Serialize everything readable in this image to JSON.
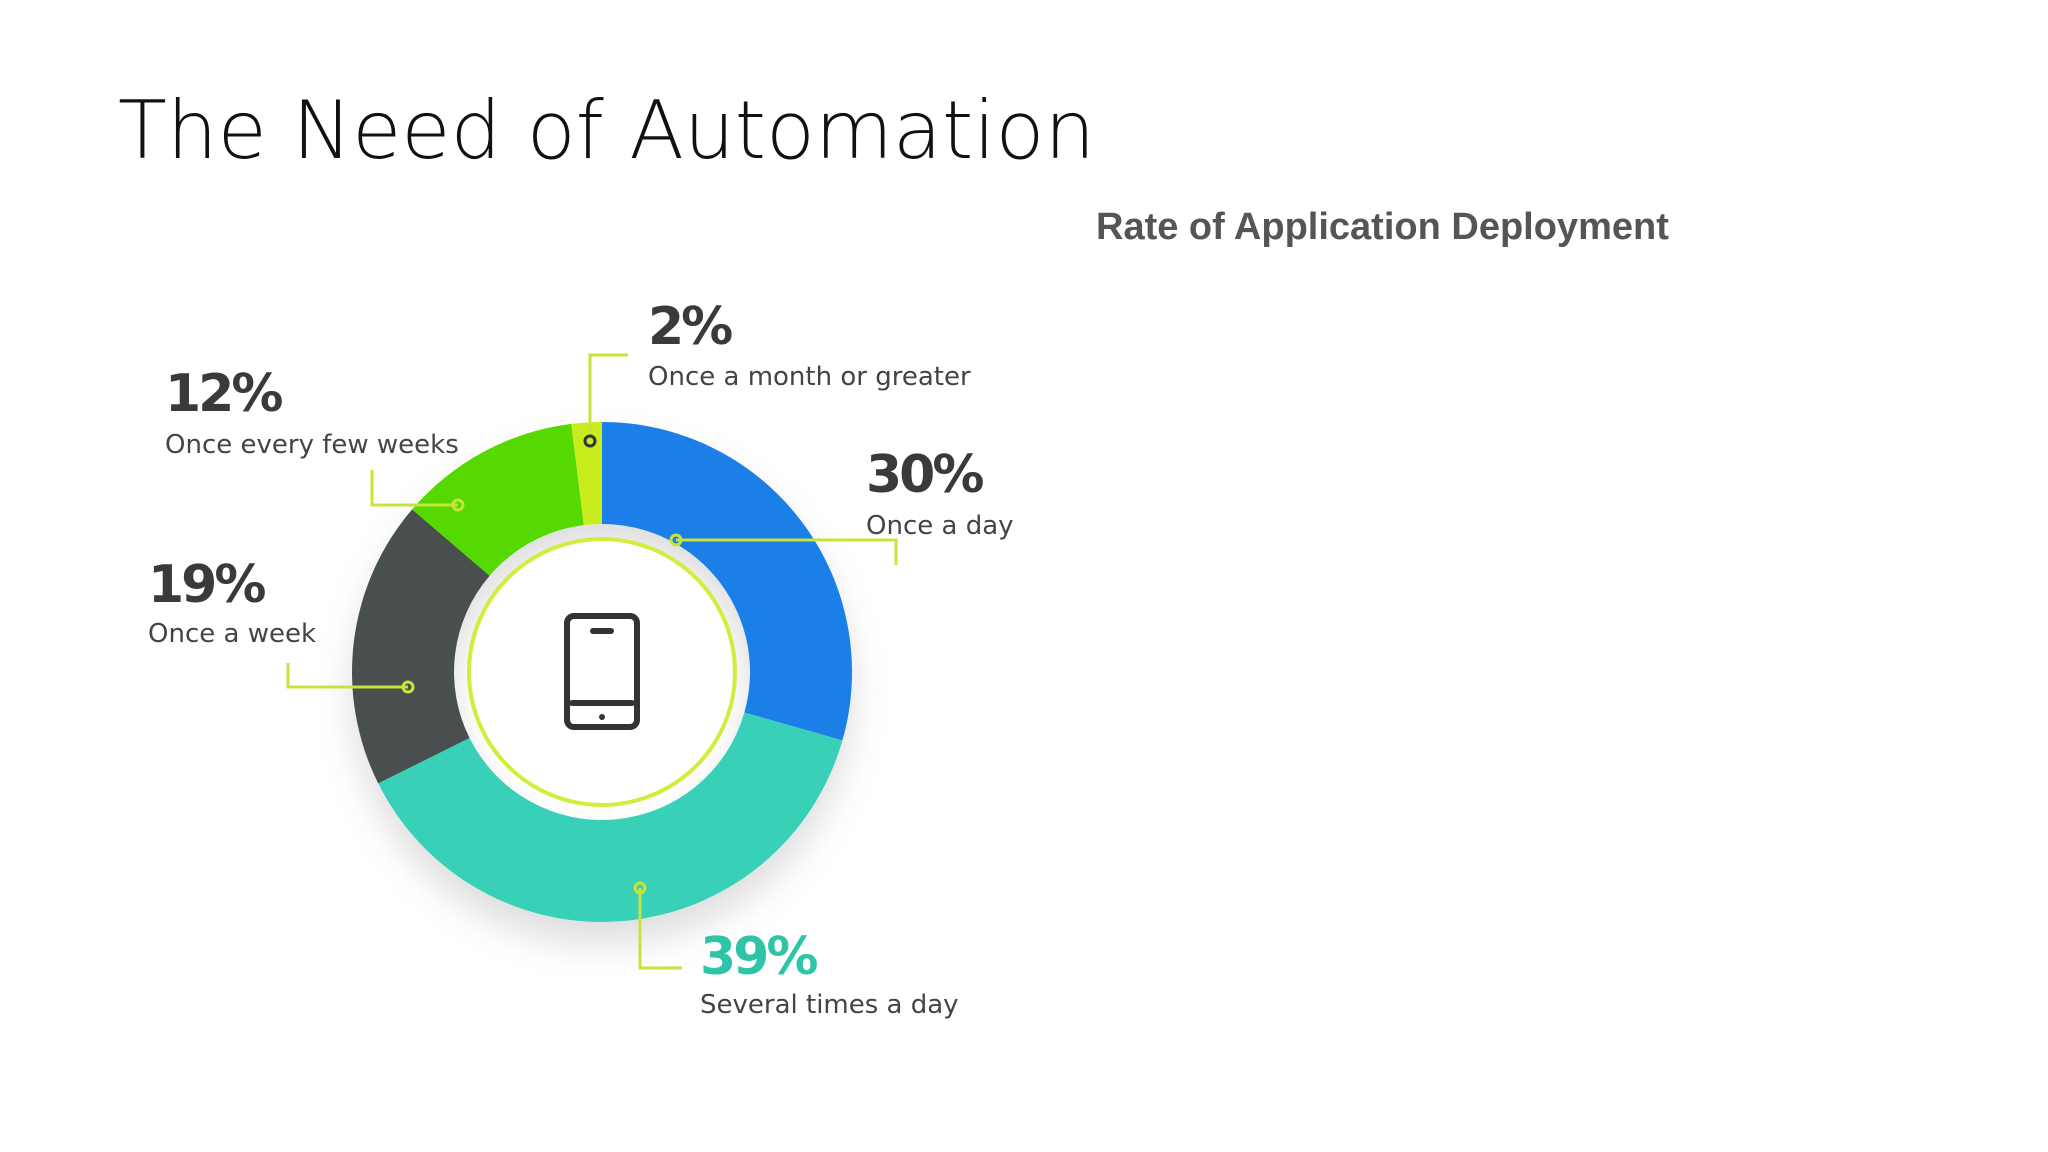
{
  "slide": {
    "title": "The Need of Automation"
  },
  "chart_data": {
    "type": "pie",
    "title": "Rate of Application Deployment",
    "donut": true,
    "slices": [
      {
        "label": "Once a day",
        "value": 30,
        "value_label": "30%",
        "color": "#1f7fe8",
        "label_color": "#3a3a3a"
      },
      {
        "label": "Several times a day",
        "value": 39,
        "value_label": "39%",
        "color": "#38d1b7",
        "label_color": "#2fc4a8"
      },
      {
        "label": "Once a week",
        "value": 19,
        "value_label": "19%",
        "color": "#4a4f50",
        "label_color": "#3a3a3a"
      },
      {
        "label": "Once every few weeks",
        "value": 12,
        "value_label": "12%",
        "color": "#55d900",
        "label_color": "#3a3a3a"
      },
      {
        "label": "Once a month or greater",
        "value": 2,
        "value_label": "2%",
        "color": "#c7ee1a",
        "label_color": "#3a3a3a"
      }
    ],
    "center_icon": "tablet-icon",
    "leader_color": "#c8e43a"
  }
}
